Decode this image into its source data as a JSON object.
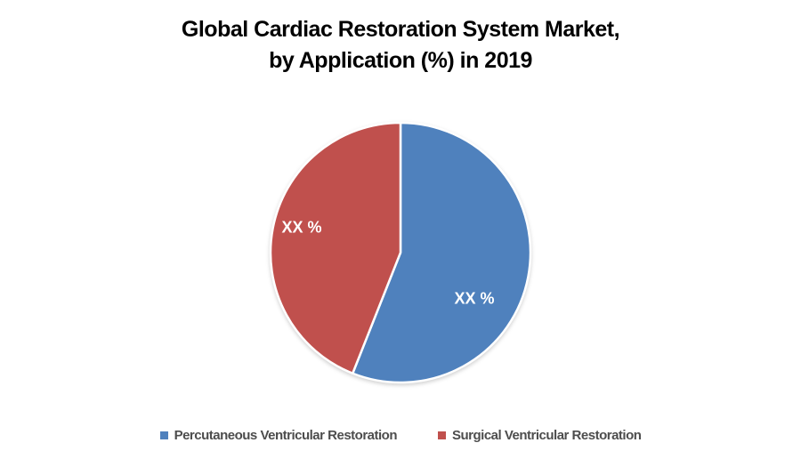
{
  "title": {
    "line1": "Global Cardiac Restoration System Market,",
    "line2": "by Application (%) in 2019"
  },
  "chart_data": {
    "type": "pie",
    "title": "Global Cardiac Restoration System Market, by Application (%) in 2019",
    "start_angle_deg": 0,
    "direction": "clockwise",
    "legend_position": "bottom",
    "background": "#ffffff",
    "separator_color": "#ffffff",
    "slices": [
      {
        "name": "Percutaneous Ventricular Restoration",
        "data_label": "XX %",
        "value_pct_estimated_from_arc": 56,
        "color": "#4F81BD"
      },
      {
        "name": "Surgical Ventricular Restoration",
        "data_label": "XX %",
        "value_pct_estimated_from_arc": 44,
        "color": "#C0504D"
      }
    ]
  },
  "colors": {
    "title_text": "#000000",
    "legend_text": "#4d4d4d",
    "data_label_text": "#ffffff"
  }
}
